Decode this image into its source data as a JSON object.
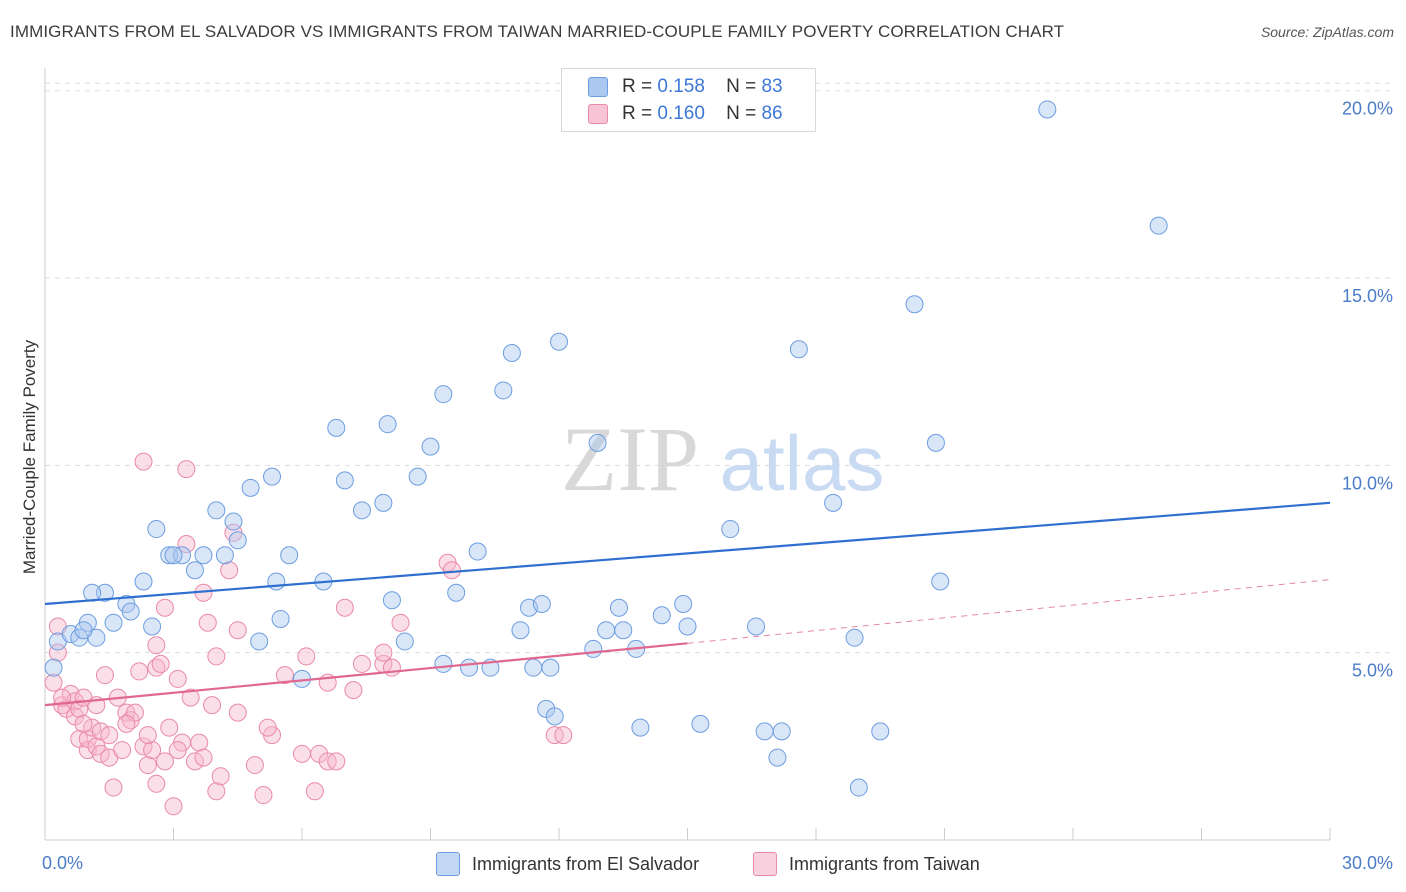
{
  "title": "IMMIGRANTS FROM EL SALVADOR VS IMMIGRANTS FROM TAIWAN MARRIED-COUPLE FAMILY POVERTY CORRELATION CHART",
  "source": "Source: ZipAtlas.com",
  "watermark": {
    "zip": "ZIP",
    "atlas": "atlas"
  },
  "legend": {
    "rows": [
      {
        "r_label": "R =",
        "r_value": "0.158",
        "n_label": "N =",
        "n_value": "83"
      },
      {
        "r_label": "R =",
        "r_value": "0.160",
        "n_label": "N =",
        "n_value": "86"
      }
    ]
  },
  "bottom_legend": {
    "el_salvador": "Immigrants from El Salvador",
    "taiwan": "Immigrants from Taiwan"
  },
  "colors": {
    "blue_fill": "#aac8f0",
    "blue_stroke": "#6d9de0",
    "blue_line": "#2f6fd0",
    "pink_fill": "#f6b8cc",
    "pink_stroke": "#e98aa8",
    "pink_line": "#e06890",
    "tick_text": "#4a7cc7",
    "grid": "#dddddd"
  },
  "chart_data": {
    "type": "scatter",
    "title": "IMMIGRANTS FROM EL SALVADOR VS IMMIGRANTS FROM TAIWAN MARRIED-COUPLE FAMILY POVERTY CORRELATION CHART",
    "xlabel": "",
    "ylabel": "Married-Couple Family Poverty",
    "xlim": [
      0,
      30
    ],
    "ylim": [
      0,
      20.5
    ],
    "y_ticks": [
      5,
      10,
      15,
      20
    ],
    "y_tick_labels": [
      "5.0%",
      "10.0%",
      "15.0%",
      "20.0%"
    ],
    "x_tick_labels": [
      "0.0%",
      "30.0%"
    ],
    "grid": "horizontal dashed",
    "legend_position": "top-center",
    "series": [
      {
        "name": "Immigrants from El Salvador",
        "color": "#aac8f0",
        "r": 0.158,
        "n": 83,
        "trend": {
          "x": [
            0,
            30
          ],
          "y": [
            6.3,
            9.0
          ],
          "style": "solid"
        },
        "points": [
          [
            0.2,
            4.6
          ],
          [
            0.3,
            5.3
          ],
          [
            0.6,
            5.5
          ],
          [
            0.8,
            5.4
          ],
          [
            1.0,
            5.8
          ],
          [
            1.2,
            5.4
          ],
          [
            1.4,
            6.6
          ],
          [
            1.6,
            5.8
          ],
          [
            1.9,
            6.3
          ],
          [
            2.0,
            6.1
          ],
          [
            2.3,
            6.9
          ],
          [
            2.5,
            5.7
          ],
          [
            2.6,
            8.3
          ],
          [
            2.9,
            7.6
          ],
          [
            3.2,
            7.6
          ],
          [
            3.5,
            7.2
          ],
          [
            3.7,
            7.6
          ],
          [
            4.0,
            8.8
          ],
          [
            4.2,
            7.6
          ],
          [
            4.4,
            8.5
          ],
          [
            4.5,
            8.0
          ],
          [
            4.8,
            9.4
          ],
          [
            5.0,
            5.3
          ],
          [
            5.3,
            9.7
          ],
          [
            5.4,
            6.9
          ],
          [
            5.5,
            5.9
          ],
          [
            5.7,
            7.6
          ],
          [
            6.0,
            4.3
          ],
          [
            6.8,
            11.0
          ],
          [
            7.0,
            9.6
          ],
          [
            7.4,
            8.8
          ],
          [
            8.0,
            11.1
          ],
          [
            7.9,
            9.0
          ],
          [
            8.1,
            6.4
          ],
          [
            8.4,
            5.3
          ],
          [
            8.7,
            9.7
          ],
          [
            9.0,
            10.5
          ],
          [
            9.3,
            4.7
          ],
          [
            9.3,
            11.9
          ],
          [
            9.6,
            6.6
          ],
          [
            9.9,
            4.6
          ],
          [
            10.1,
            7.7
          ],
          [
            10.4,
            4.6
          ],
          [
            10.7,
            12.0
          ],
          [
            10.9,
            13.0
          ],
          [
            11.1,
            5.6
          ],
          [
            11.3,
            6.2
          ],
          [
            11.4,
            4.6
          ],
          [
            11.6,
            6.3
          ],
          [
            11.8,
            4.6
          ],
          [
            12.0,
            13.3
          ],
          [
            11.7,
            3.5
          ],
          [
            11.9,
            3.3
          ],
          [
            12.9,
            10.6
          ],
          [
            12.8,
            5.1
          ],
          [
            13.1,
            5.6
          ],
          [
            13.4,
            6.2
          ],
          [
            13.5,
            5.6
          ],
          [
            13.8,
            5.1
          ],
          [
            13.9,
            3.0
          ],
          [
            14.9,
            6.3
          ],
          [
            15.0,
            5.7
          ],
          [
            15.3,
            3.1
          ],
          [
            16.0,
            8.3
          ],
          [
            16.6,
            5.7
          ],
          [
            16.8,
            2.9
          ],
          [
            17.1,
            2.2
          ],
          [
            17.2,
            2.9
          ],
          [
            17.6,
            13.1
          ],
          [
            18.4,
            9.0
          ],
          [
            18.9,
            5.4
          ],
          [
            19.0,
            1.4
          ],
          [
            19.5,
            2.9
          ],
          [
            20.3,
            14.3
          ],
          [
            20.8,
            10.6
          ],
          [
            20.9,
            6.9
          ],
          [
            23.4,
            19.5
          ],
          [
            26.0,
            16.4
          ],
          [
            1.1,
            6.6
          ],
          [
            3.0,
            7.6
          ],
          [
            6.5,
            6.9
          ],
          [
            14.4,
            6.0
          ],
          [
            0.9,
            5.6
          ]
        ]
      },
      {
        "name": "Immigrants from Taiwan",
        "color": "#f6b8cc",
        "r": 0.16,
        "n": 86,
        "trend": {
          "x": [
            0,
            15
          ],
          "y": [
            3.6,
            5.25
          ],
          "style": "solid",
          "extension": {
            "x": [
              15,
              30
            ],
            "y": [
              5.25,
              6.95
            ],
            "style": "dashed"
          }
        },
        "points": [
          [
            0.2,
            4.2
          ],
          [
            0.3,
            5.0
          ],
          [
            0.3,
            5.7
          ],
          [
            0.4,
            3.6
          ],
          [
            0.5,
            3.5
          ],
          [
            0.6,
            3.9
          ],
          [
            0.7,
            3.7
          ],
          [
            0.7,
            3.3
          ],
          [
            0.8,
            3.5
          ],
          [
            0.8,
            2.7
          ],
          [
            0.9,
            3.8
          ],
          [
            1.0,
            2.4
          ],
          [
            1.0,
            2.7
          ],
          [
            1.1,
            3.0
          ],
          [
            1.2,
            2.5
          ],
          [
            1.3,
            2.9
          ],
          [
            1.3,
            2.3
          ],
          [
            1.4,
            4.4
          ],
          [
            1.5,
            2.2
          ],
          [
            1.6,
            1.4
          ],
          [
            1.7,
            3.8
          ],
          [
            1.8,
            2.4
          ],
          [
            1.9,
            3.4
          ],
          [
            2.0,
            3.2
          ],
          [
            2.1,
            3.4
          ],
          [
            2.2,
            4.5
          ],
          [
            2.3,
            2.5
          ],
          [
            2.4,
            2.0
          ],
          [
            2.5,
            2.4
          ],
          [
            2.6,
            4.6
          ],
          [
            2.6,
            5.2
          ],
          [
            2.7,
            4.7
          ],
          [
            2.8,
            6.2
          ],
          [
            2.8,
            2.1
          ],
          [
            2.9,
            3.0
          ],
          [
            3.0,
            0.9
          ],
          [
            3.1,
            4.3
          ],
          [
            3.2,
            2.6
          ],
          [
            3.3,
            7.9
          ],
          [
            3.4,
            3.8
          ],
          [
            3.5,
            2.1
          ],
          [
            3.6,
            2.6
          ],
          [
            3.7,
            6.6
          ],
          [
            3.8,
            5.8
          ],
          [
            3.9,
            3.6
          ],
          [
            4.0,
            1.3
          ],
          [
            4.1,
            1.7
          ],
          [
            4.3,
            7.2
          ],
          [
            4.4,
            8.2
          ],
          [
            4.5,
            5.6
          ],
          [
            4.5,
            3.4
          ],
          [
            4.9,
            2.0
          ],
          [
            5.1,
            1.2
          ],
          [
            5.3,
            2.8
          ],
          [
            5.6,
            4.4
          ],
          [
            6.0,
            2.3
          ],
          [
            6.1,
            4.9
          ],
          [
            6.3,
            1.3
          ],
          [
            6.4,
            2.3
          ],
          [
            6.6,
            2.1
          ],
          [
            6.6,
            4.2
          ],
          [
            6.8,
            2.1
          ],
          [
            7.0,
            6.2
          ],
          [
            7.2,
            4.0
          ],
          [
            7.4,
            4.7
          ],
          [
            7.9,
            4.7
          ],
          [
            7.9,
            5.0
          ],
          [
            8.1,
            4.6
          ],
          [
            8.3,
            5.8
          ],
          [
            9.4,
            7.4
          ],
          [
            9.5,
            7.2
          ],
          [
            11.9,
            2.8
          ],
          [
            12.1,
            2.8
          ],
          [
            2.3,
            10.1
          ],
          [
            3.3,
            9.9
          ],
          [
            1.9,
            3.1
          ],
          [
            2.4,
            2.8
          ],
          [
            3.1,
            2.4
          ],
          [
            4.0,
            4.9
          ],
          [
            5.2,
            3.0
          ],
          [
            0.9,
            3.1
          ],
          [
            1.5,
            2.8
          ],
          [
            2.6,
            1.5
          ],
          [
            3.7,
            2.2
          ],
          [
            0.4,
            3.8
          ],
          [
            1.2,
            3.6
          ]
        ]
      }
    ]
  }
}
